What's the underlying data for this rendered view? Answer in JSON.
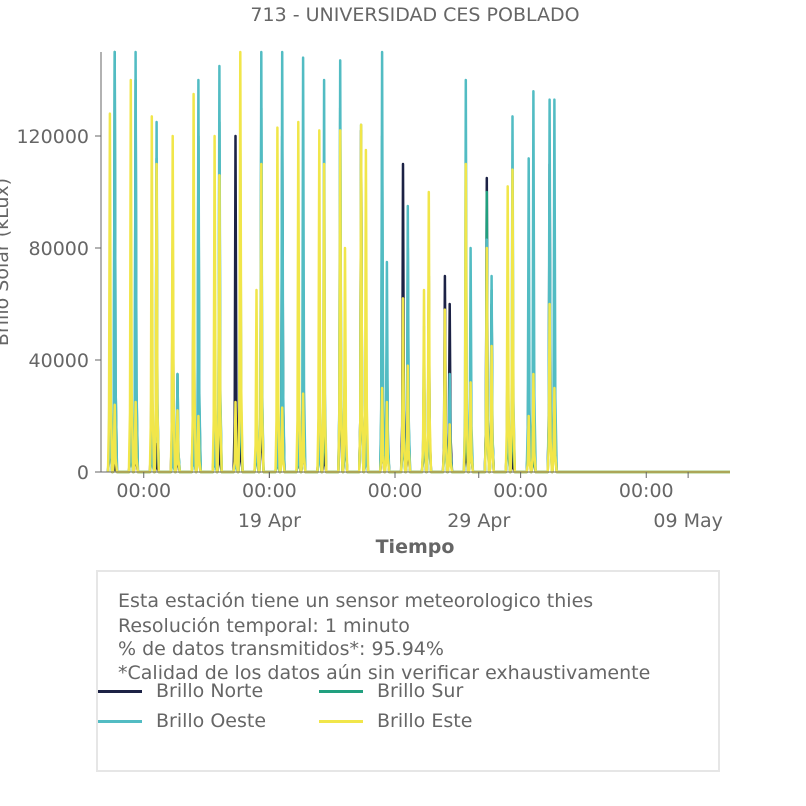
{
  "chart_data": {
    "type": "line",
    "title": "713 - UNIVERSIDAD CES POBLADO",
    "xlabel": "Tiempo",
    "ylabel": "Brillo Solar (kLux)",
    "ylim": [
      0,
      150000
    ],
    "yticks": [
      0,
      40000,
      80000,
      120000
    ],
    "ytick_labels": [
      "0",
      "40000",
      "80000",
      "120000"
    ],
    "xlim": [
      "2024-04-10T23:00",
      "2024-05-11T00:00"
    ],
    "x_major_tick_labels": [
      "00:00",
      "00:00",
      "00:00",
      "00:00",
      "00:00"
    ],
    "x_date_labels": [
      "19 Apr",
      "29 Apr",
      "09 May"
    ],
    "grid": false,
    "series": [
      {
        "name": "Brillo Norte",
        "color": "#1c2245",
        "values": [
          38000,
          5000,
          30000,
          20000,
          52000,
          10000,
          80000,
          15000,
          90000,
          28000,
          40000,
          22000,
          120000,
          30000,
          28000,
          60000,
          30000,
          120000,
          18000,
          30000,
          40000,
          20000,
          95000,
          40000,
          122000,
          22000,
          30000,
          45000,
          110000,
          30000,
          40000,
          70000,
          70000,
          60000,
          30000,
          35000,
          105000,
          60000,
          50000,
          10000,
          55000,
          20000,
          110000,
          60000
        ]
      },
      {
        "name": "Brillo Sur",
        "color": "#21a07f",
        "values": [
          60000,
          150000,
          25000,
          140000,
          20000,
          112000,
          14000,
          35000,
          20000,
          120000,
          15000,
          125000,
          12000,
          90000,
          25000,
          130000,
          12000,
          100000,
          20000,
          30000,
          40000,
          60000,
          130000,
          40000,
          110000,
          40000,
          120000,
          50000,
          40000,
          80000,
          40000,
          60000,
          40000,
          30000,
          60000,
          35000,
          100000,
          65000,
          40000,
          60000,
          45000,
          20000,
          95000,
          60000
        ]
      },
      {
        "name": "Brillo Oeste",
        "color": "#52bcc3",
        "values": [
          40000,
          150000,
          30000,
          150000,
          22000,
          125000,
          15000,
          35000,
          20000,
          140000,
          18000,
          145000,
          10000,
          115000,
          30000,
          150000,
          15000,
          150000,
          20000,
          148000,
          25000,
          140000,
          147000,
          45000,
          124000,
          20000,
          150000,
          75000,
          48000,
          95000,
          52000,
          62000,
          38000,
          35000,
          140000,
          80000,
          83000,
          70000,
          56000,
          127000,
          112000,
          136000,
          133000,
          133000
        ]
      },
      {
        "name": "Brillo Este",
        "color": "#f1e64a",
        "values": [
          128000,
          24000,
          140000,
          25000,
          127000,
          110000,
          120000,
          22000,
          135000,
          20000,
          120000,
          106000,
          25000,
          150000,
          65000,
          110000,
          123000,
          23000,
          125000,
          28000,
          122000,
          110000,
          122000,
          80000,
          124000,
          115000,
          30000,
          25000,
          62000,
          38000,
          65000,
          100000,
          58000,
          17000,
          110000,
          32000,
          80000,
          45000,
          102000,
          108000,
          20000,
          35000,
          60000,
          30000
        ]
      }
    ]
  },
  "info": {
    "line1": "Esta estación tiene un sensor meteorologico thies",
    "line2": "Resolución temporal: 1 minuto",
    "line3": "% de datos transmitidos*: 95.94%",
    "line4": "*Calidad de los datos aún sin verificar exhaustivamente"
  },
  "legend": [
    {
      "label": "Brillo Norte",
      "color": "#1c2245"
    },
    {
      "label": "Brillo Sur",
      "color": "#21a07f"
    },
    {
      "label": "Brillo Oeste",
      "color": "#52bcc3"
    },
    {
      "label": "Brillo Este",
      "color": "#f1e64a"
    }
  ]
}
